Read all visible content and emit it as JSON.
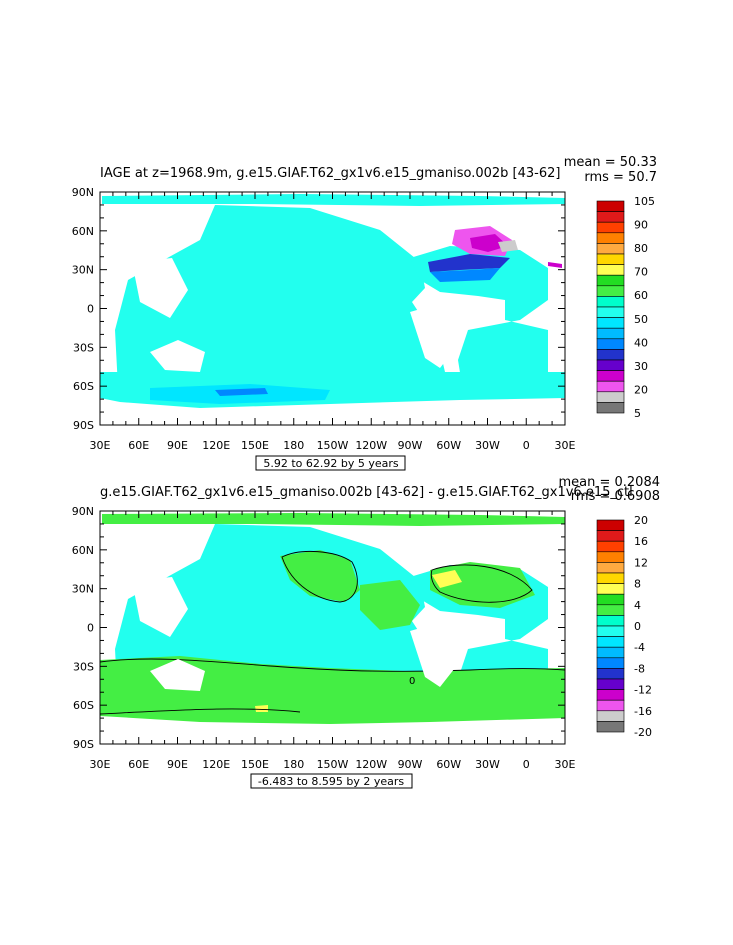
{
  "chart_data": [
    {
      "type": "heatmap",
      "title": "IAGE at z=1968.9m, g.e15.GIAF.T62_gx1v6.e15_gmaniso.002b [43-62]",
      "stat_mean": "mean = 50.33",
      "stat_rms": "rms = 50.7",
      "x_ticks": [
        "30E",
        "60E",
        "90E",
        "120E",
        "150E",
        "180",
        "150W",
        "120W",
        "90W",
        "60W",
        "30W",
        "0",
        "30E"
      ],
      "y_ticks": [
        "90N",
        "60N",
        "30N",
        "0",
        "30S",
        "60S",
        "90S"
      ],
      "xlim": [
        30,
        390
      ],
      "ylim": [
        -90,
        90
      ],
      "contour_info": "5.92 to 62.92 by 5 years",
      "colorbar": {
        "labels": [
          "105",
          "90",
          "80",
          "70",
          "60",
          "50",
          "40",
          "30",
          "20",
          "5"
        ],
        "colors": [
          "#cc0000",
          "#e01a1a",
          "#ff4000",
          "#ff8000",
          "#ffaa40",
          "#ffd700",
          "#ffff55",
          "#22dd22",
          "#44ee44",
          "#00ffcc",
          "#22ffee",
          "#00e6ff",
          "#00bbff",
          "#0088ff",
          "#2233cc",
          "#6600cc",
          "#cc00cc",
          "#ee55ee",
          "#cccccc",
          "#777777"
        ]
      },
      "field": {
        "ocean_color": "#22ffee",
        "southern_band_color": "#00e6ff",
        "north_atlantic_colors": [
          "#ee55ee",
          "#cc00cc",
          "#2233cc",
          "#0088ff"
        ]
      }
    },
    {
      "type": "heatmap",
      "title": "g.e15.GIAF.T62_gx1v6.e15_gmaniso.002b [43-62] - g.e15.GIAF.T62_gx1v6.e15_ctl",
      "stat_mean": "mean = 0.2084",
      "stat_rms": "rms = 0.6908",
      "x_ticks": [
        "30E",
        "60E",
        "90E",
        "120E",
        "150E",
        "180",
        "150W",
        "120W",
        "90W",
        "60W",
        "30W",
        "0",
        "30E"
      ],
      "y_ticks": [
        "90N",
        "60N",
        "30N",
        "0",
        "30S",
        "60S",
        "90S"
      ],
      "xlim": [
        30,
        390
      ],
      "ylim": [
        -90,
        90
      ],
      "contour_info": "-6.483 to 8.595 by 2 years",
      "contour_label": "0",
      "colorbar": {
        "labels": [
          "20",
          "16",
          "12",
          "8",
          "4",
          "0",
          "-4",
          "-8",
          "-12",
          "-16",
          "-20"
        ],
        "colors": [
          "#cc0000",
          "#e01a1a",
          "#ff4000",
          "#ff8000",
          "#ffaa40",
          "#ffd700",
          "#ffff55",
          "#22dd22",
          "#44ee44",
          "#00ffcc",
          "#22ffee",
          "#00e6ff",
          "#00bbff",
          "#0088ff",
          "#2233cc",
          "#6600cc",
          "#cc00cc",
          "#ee55ee",
          "#cccccc",
          "#777777"
        ]
      },
      "field": {
        "positive_color": "#44ee44",
        "negative_color": "#22ffee",
        "hotspot_color": "#ffff55"
      }
    }
  ]
}
